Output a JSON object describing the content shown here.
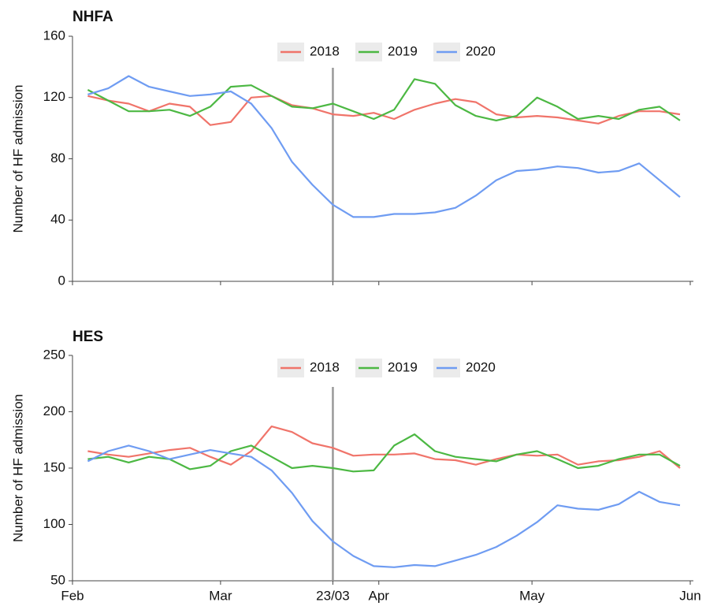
{
  "chart_data": [
    {
      "type": "line",
      "title": "NHFA",
      "y_label": "Number of HF admission",
      "x": [
        3,
        7,
        11,
        15,
        19,
        23,
        27,
        31,
        35,
        39,
        43,
        47,
        51,
        55,
        59,
        63,
        67,
        71,
        75,
        79,
        83,
        87,
        91,
        95,
        99,
        103,
        107,
        111,
        115,
        119
      ],
      "xlim": [
        0,
        121
      ],
      "ylim": [
        0,
        160
      ],
      "yticks": [
        0,
        40,
        80,
        120,
        160
      ],
      "vline": 51,
      "series": [
        {
          "name": "2018",
          "color": "#f0746a",
          "values": [
            121,
            118,
            116,
            111,
            116,
            114,
            102,
            104,
            120,
            121,
            115,
            113,
            109,
            108,
            110,
            106,
            112,
            116,
            119,
            117,
            109,
            107,
            108,
            107,
            105,
            103,
            108,
            111,
            111,
            109
          ]
        },
        {
          "name": "2019",
          "color": "#4cb843",
          "values": [
            125,
            118,
            111,
            111,
            112,
            108,
            114,
            127,
            128,
            121,
            114,
            113,
            116,
            111,
            106,
            112,
            132,
            129,
            115,
            108,
            105,
            108,
            120,
            114,
            106,
            108,
            106,
            112,
            114,
            105
          ]
        },
        {
          "name": "2020",
          "color": "#6f9cf2",
          "values": [
            122,
            126,
            134,
            127,
            124,
            121,
            122,
            124,
            116,
            100,
            78,
            63,
            50,
            42,
            42,
            44,
            44,
            45,
            48,
            56,
            66,
            72,
            73,
            75,
            74,
            71,
            72,
            77,
            66,
            55
          ]
        }
      ]
    },
    {
      "type": "line",
      "title": "HES",
      "y_label": "Number of HF admission",
      "x": [
        3,
        7,
        11,
        15,
        19,
        23,
        27,
        31,
        35,
        39,
        43,
        47,
        51,
        55,
        59,
        63,
        67,
        71,
        75,
        79,
        83,
        87,
        91,
        95,
        99,
        103,
        107,
        111,
        115,
        119
      ],
      "xlim": [
        0,
        121
      ],
      "ylim": [
        50,
        250
      ],
      "yticks": [
        50,
        100,
        150,
        200,
        250
      ],
      "vline": 51,
      "xticks": [
        {
          "value": 0,
          "label": "Feb"
        },
        {
          "value": 29,
          "label": "Mar"
        },
        {
          "value": 51,
          "label": "23/03"
        },
        {
          "value": 60,
          "label": "Apr"
        },
        {
          "value": 90,
          "label": "May"
        },
        {
          "value": 121,
          "label": "Jun"
        }
      ],
      "series": [
        {
          "name": "2018",
          "color": "#f0746a",
          "values": [
            165,
            162,
            160,
            163,
            166,
            168,
            160,
            153,
            165,
            187,
            182,
            172,
            168,
            161,
            162,
            162,
            163,
            158,
            157,
            153,
            158,
            162,
            161,
            162,
            153,
            156,
            157,
            160,
            165,
            150
          ]
        },
        {
          "name": "2019",
          "color": "#4cb843",
          "values": [
            158,
            160,
            155,
            160,
            158,
            149,
            152,
            165,
            170,
            160,
            150,
            152,
            150,
            147,
            148,
            170,
            180,
            165,
            160,
            158,
            156,
            162,
            165,
            158,
            150,
            152,
            158,
            162,
            162,
            152
          ]
        },
        {
          "name": "2020",
          "color": "#6f9cf2",
          "values": [
            156,
            165,
            170,
            165,
            158,
            162,
            166,
            163,
            160,
            148,
            128,
            103,
            85,
            72,
            63,
            62,
            64,
            63,
            68,
            73,
            80,
            90,
            102,
            117,
            114,
            113,
            118,
            129,
            120,
            117
          ]
        }
      ]
    }
  ]
}
